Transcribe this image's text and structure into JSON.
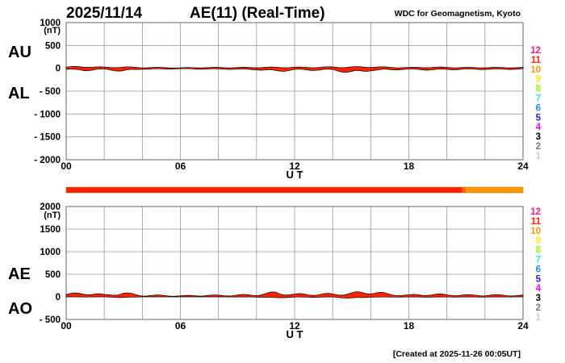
{
  "header": {
    "date": "2025/11/14",
    "title": "AE(11) (Real-Time)",
    "source": "WDC for Geomagnetism, Kyoto"
  },
  "footer": "[Created at 2025-11-26 00:05UT]",
  "legend_numbers": [
    {
      "label": "12",
      "color": "#ff1a8c"
    },
    {
      "label": "11",
      "color": "#ff2200"
    },
    {
      "label": "10",
      "color": "#ff9900"
    },
    {
      "label": "9",
      "color": "#ffe600"
    },
    {
      "label": "8",
      "color": "#99ff00"
    },
    {
      "label": "7",
      "color": "#22eedd"
    },
    {
      "label": "6",
      "color": "#1a88ff"
    },
    {
      "label": "5",
      "color": "#3311ff"
    },
    {
      "label": "4",
      "color": "#ff00ff"
    },
    {
      "label": "3",
      "color": "#000000"
    },
    {
      "label": "2",
      "color": "#777777"
    },
    {
      "label": "1",
      "color": "#cccccc"
    }
  ],
  "chart_data": [
    {
      "type": "area",
      "name": "AU/AL",
      "label_upper": "AU",
      "label_lower": "AL",
      "unit": "(nT)",
      "xlabel": "U T",
      "xticks": [
        "00",
        "06",
        "12",
        "18",
        "24"
      ],
      "xlim": [
        0,
        24
      ],
      "yticks": [
        "1000",
        "500",
        "0",
        "- 500",
        "- 1000",
        "- 1500",
        "- 2000"
      ],
      "ylim": [
        -2000,
        1000
      ],
      "grid": true,
      "x": [
        0,
        1,
        2,
        3,
        4,
        5,
        6,
        7,
        8,
        9,
        10,
        11,
        12,
        13,
        14,
        15,
        16,
        17,
        18,
        19,
        20,
        21,
        22,
        23,
        24
      ],
      "series": [
        {
          "name": "AU",
          "color": "#ff2200",
          "values": [
            25,
            35,
            20,
            25,
            15,
            15,
            10,
            15,
            15,
            15,
            20,
            20,
            20,
            20,
            25,
            25,
            30,
            20,
            15,
            20,
            20,
            15,
            15,
            15,
            15
          ]
        },
        {
          "name": "AL",
          "color": "#ff2200",
          "values": [
            -25,
            -40,
            -20,
            -55,
            -15,
            -15,
            -10,
            -15,
            -15,
            -20,
            -25,
            -60,
            -30,
            -35,
            -30,
            -90,
            -40,
            -30,
            -20,
            -30,
            -25,
            -20,
            -20,
            -20,
            -15
          ]
        }
      ]
    },
    {
      "type": "area",
      "name": "AE/AO",
      "label_upper": "AE",
      "label_lower": "AO",
      "unit": "(nT)",
      "xlabel": "U T",
      "xticks": [
        "00",
        "06",
        "12",
        "18",
        "24"
      ],
      "xlim": [
        0,
        24
      ],
      "yticks": [
        "2000",
        "1500",
        "1000",
        "500",
        "0",
        "- 500"
      ],
      "ylim": [
        -500,
        2000
      ],
      "grid": true,
      "x": [
        0,
        1,
        2,
        3,
        4,
        5,
        6,
        7,
        8,
        9,
        10,
        11,
        12,
        13,
        14,
        15,
        16,
        17,
        18,
        19,
        20,
        21,
        22,
        23,
        24
      ],
      "series": [
        {
          "name": "AE",
          "color": "#ff2200",
          "values": [
            50,
            80,
            40,
            75,
            30,
            30,
            20,
            30,
            30,
            35,
            45,
            85,
            50,
            55,
            55,
            70,
            110,
            50,
            35,
            50,
            45,
            35,
            35,
            35,
            30
          ]
        },
        {
          "name": "AO",
          "color": "#ff2200",
          "values": [
            0,
            -3,
            0,
            -15,
            0,
            0,
            0,
            0,
            0,
            -3,
            -3,
            -20,
            -5,
            -8,
            -3,
            -30,
            -5,
            -5,
            -3,
            -5,
            -3,
            -3,
            -3,
            -3,
            0
          ]
        }
      ]
    }
  ],
  "station_bar": [
    {
      "from": 0,
      "to": 20.8,
      "color": "#ff2200"
    },
    {
      "from": 20.8,
      "to": 21.0,
      "color": "#ff6600"
    },
    {
      "from": 21.0,
      "to": 24,
      "color": "#ff9900"
    }
  ]
}
